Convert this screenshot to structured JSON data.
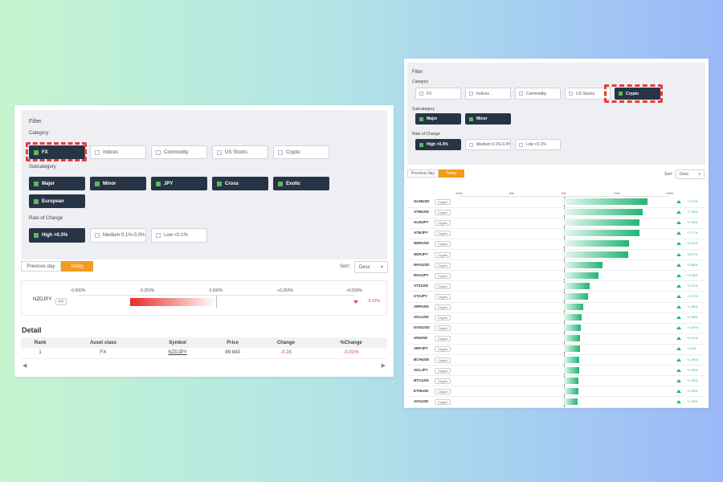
{
  "left": {
    "filter_title": "Filter",
    "category_label": "Category",
    "categories": [
      {
        "label": "FX",
        "checked": true
      },
      {
        "label": "Indices",
        "checked": false
      },
      {
        "label": "Commodity",
        "checked": false
      },
      {
        "label": "US Stocks",
        "checked": false
      },
      {
        "label": "Crypto",
        "checked": false
      }
    ],
    "subcategory_label": "Subcategory",
    "subcategories": [
      {
        "label": "Major",
        "checked": true
      },
      {
        "label": "Minor",
        "checked": true
      },
      {
        "label": "JPY",
        "checked": true
      },
      {
        "label": "Cross",
        "checked": true
      },
      {
        "label": "Exotic",
        "checked": true
      },
      {
        "label": "European",
        "checked": true
      }
    ],
    "rate_label": "Rate of Change",
    "rates": [
      {
        "label": "High >0.3%",
        "checked": true
      },
      {
        "label": "Medium 0.1%-0.3%",
        "checked": false
      },
      {
        "label": "Low <0.1%",
        "checked": false
      }
    ],
    "tabs": [
      {
        "label": "Previous day",
        "active": false
      },
      {
        "label": "Today",
        "active": true
      }
    ],
    "sort_label": "Sort :",
    "sort_value": "Desc",
    "axis": [
      "-0.500%",
      "-0.250%",
      "0.000%",
      "+0.250%",
      "+0.500%"
    ],
    "row": {
      "symbol": "NZDJPY",
      "tag": "FX",
      "change": -0.31,
      "change_text": "-0.31%"
    },
    "detail_title": "Detail",
    "table_headers": [
      "Rank",
      "Asset class",
      "Symbol",
      "Price",
      "Change",
      "%Change"
    ],
    "table_rows": [
      {
        "rank": "1",
        "asset": "FX",
        "symbol": "NZDJPY",
        "price": "89.843",
        "change": "-0.28",
        "pct": "-0.31%"
      }
    ]
  },
  "right": {
    "filter_title": "Filter",
    "category_label": "Category",
    "categories": [
      {
        "label": "FX",
        "checked": false
      },
      {
        "label": "Indices",
        "checked": false
      },
      {
        "label": "Commodity",
        "checked": false
      },
      {
        "label": "US Stocks",
        "checked": false
      },
      {
        "label": "Crypto",
        "checked": true
      }
    ],
    "subcategory_label": "Subcategory",
    "subcategories": [
      {
        "label": "Major",
        "checked": true
      },
      {
        "label": "Minor",
        "checked": true
      }
    ],
    "rate_label": "Rate of Change",
    "rates": [
      {
        "label": "High >0.3%",
        "checked": true
      },
      {
        "label": "Medium 0.1%-0.3%",
        "checked": false
      },
      {
        "label": "Low <0.1%",
        "checked": false
      }
    ],
    "tabs": [
      {
        "label": "Previous day",
        "active": false
      },
      {
        "label": "Today",
        "active": true
      }
    ],
    "sort_label": "Sort :",
    "sort_value": "Desc",
    "axis": [
      "-10%",
      "-5%",
      "0%",
      "+5%",
      "+10%"
    ],
    "tag": "Crypto",
    "rows": [
      {
        "symbol": "GLMUSD",
        "change": 7.97,
        "text": "+7.97%"
      },
      {
        "symbol": "ATMUSD",
        "change": 7.45,
        "text": "+7.45%"
      },
      {
        "symbol": "GLMJPY",
        "change": 7.18,
        "text": "+7.18%"
      },
      {
        "symbol": "ATMJPY",
        "change": 7.17,
        "text": "+7.17%"
      },
      {
        "symbol": "NERUSD",
        "change": 6.22,
        "text": "+6.22%"
      },
      {
        "symbol": "NERJPY",
        "change": 6.07,
        "text": "+6.07%"
      },
      {
        "symbol": "MASUSD",
        "change": 3.66,
        "text": "+3.66%"
      },
      {
        "symbol": "MASJPY",
        "change": 3.28,
        "text": "+3.28%"
      },
      {
        "symbol": "XTZUSD",
        "change": 2.47,
        "text": "+2.47%"
      },
      {
        "symbol": "XTZJPY",
        "change": 2.27,
        "text": "+2.27%"
      },
      {
        "symbol": "XRPUSD",
        "change": 1.85,
        "text": "+1.85%"
      },
      {
        "symbol": "SOLUSD",
        "change": 1.68,
        "text": "+1.68%"
      },
      {
        "symbol": "DOGUSD",
        "change": 1.62,
        "text": "+1.62%"
      },
      {
        "symbol": "UNIUSD",
        "change": 1.51,
        "text": "+1.51%"
      },
      {
        "symbol": "XRPJPY",
        "change": 1.5,
        "text": "+1.5%"
      },
      {
        "symbol": "BCHUSD",
        "change": 1.48,
        "text": "+1.48%"
      },
      {
        "symbol": "SOLJPY",
        "change": 1.45,
        "text": "+1.45%"
      },
      {
        "symbol": "BTCUSD",
        "change": 1.35,
        "text": "+1.35%"
      },
      {
        "symbol": "ETHUSD",
        "change": 1.35,
        "text": "+1.35%"
      },
      {
        "symbol": "AVAUSD",
        "change": 1.32,
        "text": "+1.32%"
      }
    ]
  },
  "colors": {
    "selected": "#273446",
    "checkbox_on": "#5cb85c",
    "accent_tab": "#f39a1f",
    "positive": "#22b573",
    "negative": "#e43c3c",
    "highlight": "#e43c3c"
  }
}
